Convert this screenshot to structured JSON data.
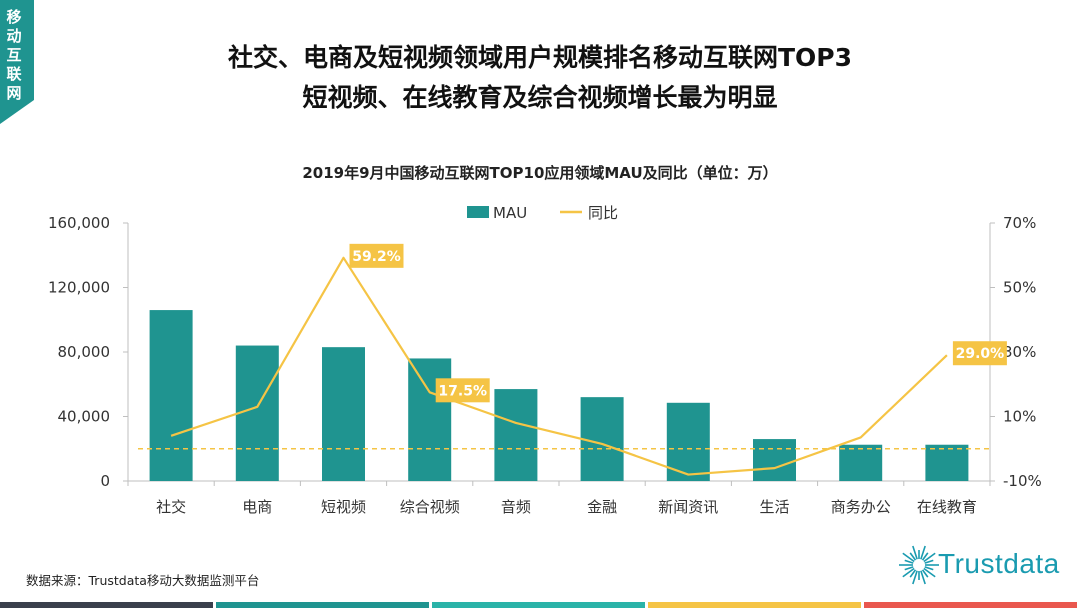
{
  "section_tag": "移动互联网",
  "headline": {
    "line1": "社交、电商及短视频领域用户规模排名移动互联网TOP3",
    "line2": "短视频、在线教育及综合视频增长最为明显"
  },
  "source_note": "数据来源：Trustdata移动大数据监测平台",
  "logo_text": "Trustdata",
  "colors": {
    "bar": "#1f9490",
    "line": "#f5c445",
    "tag": "#1f9490",
    "footer": [
      "#3a3f4c",
      "#1f9490",
      "#2ab3a8",
      "#f5c445",
      "#e9574e"
    ]
  },
  "chart_data": {
    "type": "bar",
    "title": "2019年9月中国移动互联网TOP10应用领域MAU及同比（单位：万）",
    "categories": [
      "社交",
      "电商",
      "短视频",
      "综合视频",
      "音频",
      "金融",
      "新闻资讯",
      "生活",
      "商务办公",
      "在线教育"
    ],
    "series": [
      {
        "name": "MAU",
        "type": "bar",
        "axis": "left",
        "values": [
          106000,
          84000,
          83000,
          76000,
          57000,
          52000,
          48500,
          26000,
          22500,
          22500
        ]
      },
      {
        "name": "同比",
        "type": "line",
        "axis": "right",
        "values": [
          4,
          13,
          59.2,
          17.5,
          8,
          1.5,
          -8,
          -6,
          3.5,
          29.0
        ]
      }
    ],
    "data_labels": [
      {
        "series": "同比",
        "index": 2,
        "text": "59.2%"
      },
      {
        "series": "同比",
        "index": 3,
        "text": "17.5%"
      },
      {
        "series": "同比",
        "index": 9,
        "text": "29.0%"
      }
    ],
    "ylim_left": [
      0,
      160000
    ],
    "yticks_left": [
      "0",
      "40,000",
      "80,000",
      "120,000",
      "160,000"
    ],
    "ylim_right": [
      -10,
      70
    ],
    "yticks_right": [
      "-10%",
      "10%",
      "30%",
      "50%",
      "70%"
    ],
    "reference_line": {
      "axis": "right",
      "value": 0,
      "style": "dashed"
    },
    "legend": {
      "position": "top-center",
      "items": [
        "MAU",
        "同比"
      ]
    },
    "grid": false
  }
}
